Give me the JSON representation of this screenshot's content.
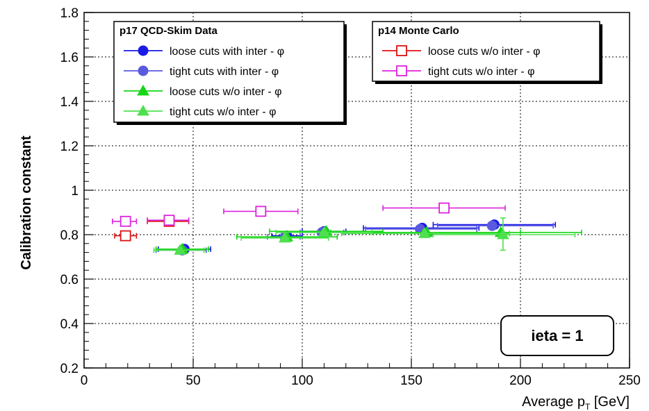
{
  "chart_data": {
    "type": "scatter",
    "xlabel": "Average p",
    "xlabel_sub": "T",
    "xlabel_unit": " [GeV]",
    "ylabel": "Calibration constant",
    "xlim": [
      0,
      250
    ],
    "ylim": [
      0.2,
      1.8
    ],
    "xticks": [
      "0",
      "50",
      "100",
      "150",
      "200",
      "250"
    ],
    "yticks": [
      "0.2",
      "0.4",
      "0.6",
      "0.8",
      "1",
      "1.2",
      "1.4",
      "1.6",
      "1.8"
    ],
    "grid": true,
    "annotation": "ieta = 1",
    "legends": [
      {
        "title": "p17 QCD-Skim Data",
        "placement": "top-left",
        "entries": [
          {
            "text": "loose cuts  with  inter - φ",
            "series": 0
          },
          {
            "text": "tight cuts  with  inter - φ",
            "series": 1
          },
          {
            "text": "loose cuts  w/o  inter - φ",
            "series": 2
          },
          {
            "text": "tight cuts  w/o  inter - φ",
            "series": 3
          }
        ]
      },
      {
        "title": "p14 Monte Carlo",
        "placement": "top-right",
        "entries": [
          {
            "text": "loose cuts  w/o  inter - φ",
            "series": 4
          },
          {
            "text": "tight cuts  w/o  inter - φ",
            "series": 5
          }
        ]
      }
    ],
    "series": [
      {
        "marker": "circle-filled",
        "color": "#1a1ae6",
        "points": [
          {
            "x": 46,
            "y": 0.735,
            "xlo": 34,
            "xhi": 58
          },
          {
            "x": 93,
            "y": 0.795,
            "xlo": 86,
            "xhi": 100
          },
          {
            "x": 110,
            "y": 0.815,
            "xlo": 100,
            "xhi": 120
          },
          {
            "x": 155,
            "y": 0.83,
            "xlo": 128,
            "xhi": 181
          },
          {
            "x": 188,
            "y": 0.845,
            "xlo": 160,
            "xhi": 216
          }
        ]
      },
      {
        "marker": "circle-filled",
        "color": "#5a5ae0",
        "points": [
          {
            "x": 45,
            "y": 0.73,
            "xlo": 33,
            "xhi": 56
          },
          {
            "x": 92,
            "y": 0.79,
            "xlo": 84,
            "xhi": 99
          },
          {
            "x": 109,
            "y": 0.81,
            "xlo": 99,
            "xhi": 119
          },
          {
            "x": 154,
            "y": 0.825,
            "xlo": 129,
            "xhi": 180
          },
          {
            "x": 187,
            "y": 0.84,
            "xlo": 162,
            "xhi": 215
          }
        ]
      },
      {
        "marker": "triangle-filled",
        "color": "#16d616",
        "points": [
          {
            "x": 45,
            "y": 0.735,
            "xlo": 33,
            "xhi": 57
          },
          {
            "x": 93,
            "y": 0.79,
            "xlo": 70,
            "xhi": 116
          },
          {
            "x": 111,
            "y": 0.815,
            "xlo": 85,
            "xhi": 137
          },
          {
            "x": 157,
            "y": 0.81,
            "xlo": 113,
            "xhi": 200
          },
          {
            "x": 191,
            "y": 0.81,
            "xlo": 155,
            "xhi": 228
          }
        ]
      },
      {
        "marker": "triangle-filled",
        "color": "#4ee04e",
        "points": [
          {
            "x": 44,
            "y": 0.73,
            "xlo": 32,
            "xhi": 55
          },
          {
            "x": 92,
            "y": 0.785,
            "xlo": 72,
            "xhi": 112
          },
          {
            "x": 110,
            "y": 0.81,
            "xlo": 88,
            "xhi": 132
          },
          {
            "x": 156,
            "y": 0.805,
            "xlo": 118,
            "xhi": 195
          },
          {
            "x": 192,
            "y": 0.8,
            "xlo": 160,
            "xhi": 225,
            "ylo": 0.73,
            "yhi": 0.875
          }
        ]
      },
      {
        "marker": "square-open",
        "color": "#dd1111",
        "points": [
          {
            "x": 19,
            "y": 0.795,
            "xlo": 14,
            "xhi": 24
          },
          {
            "x": 39,
            "y": 0.86,
            "xlo": 29,
            "xhi": 48
          }
        ]
      },
      {
        "marker": "square-open",
        "color": "#dd22dd",
        "points": [
          {
            "x": 19,
            "y": 0.86,
            "xlo": 13,
            "xhi": 24
          },
          {
            "x": 39,
            "y": 0.865,
            "xlo": 29,
            "xhi": 48
          },
          {
            "x": 81,
            "y": 0.905,
            "xlo": 64,
            "xhi": 98
          },
          {
            "x": 165,
            "y": 0.92,
            "xlo": 137,
            "xhi": 193
          }
        ]
      }
    ]
  }
}
